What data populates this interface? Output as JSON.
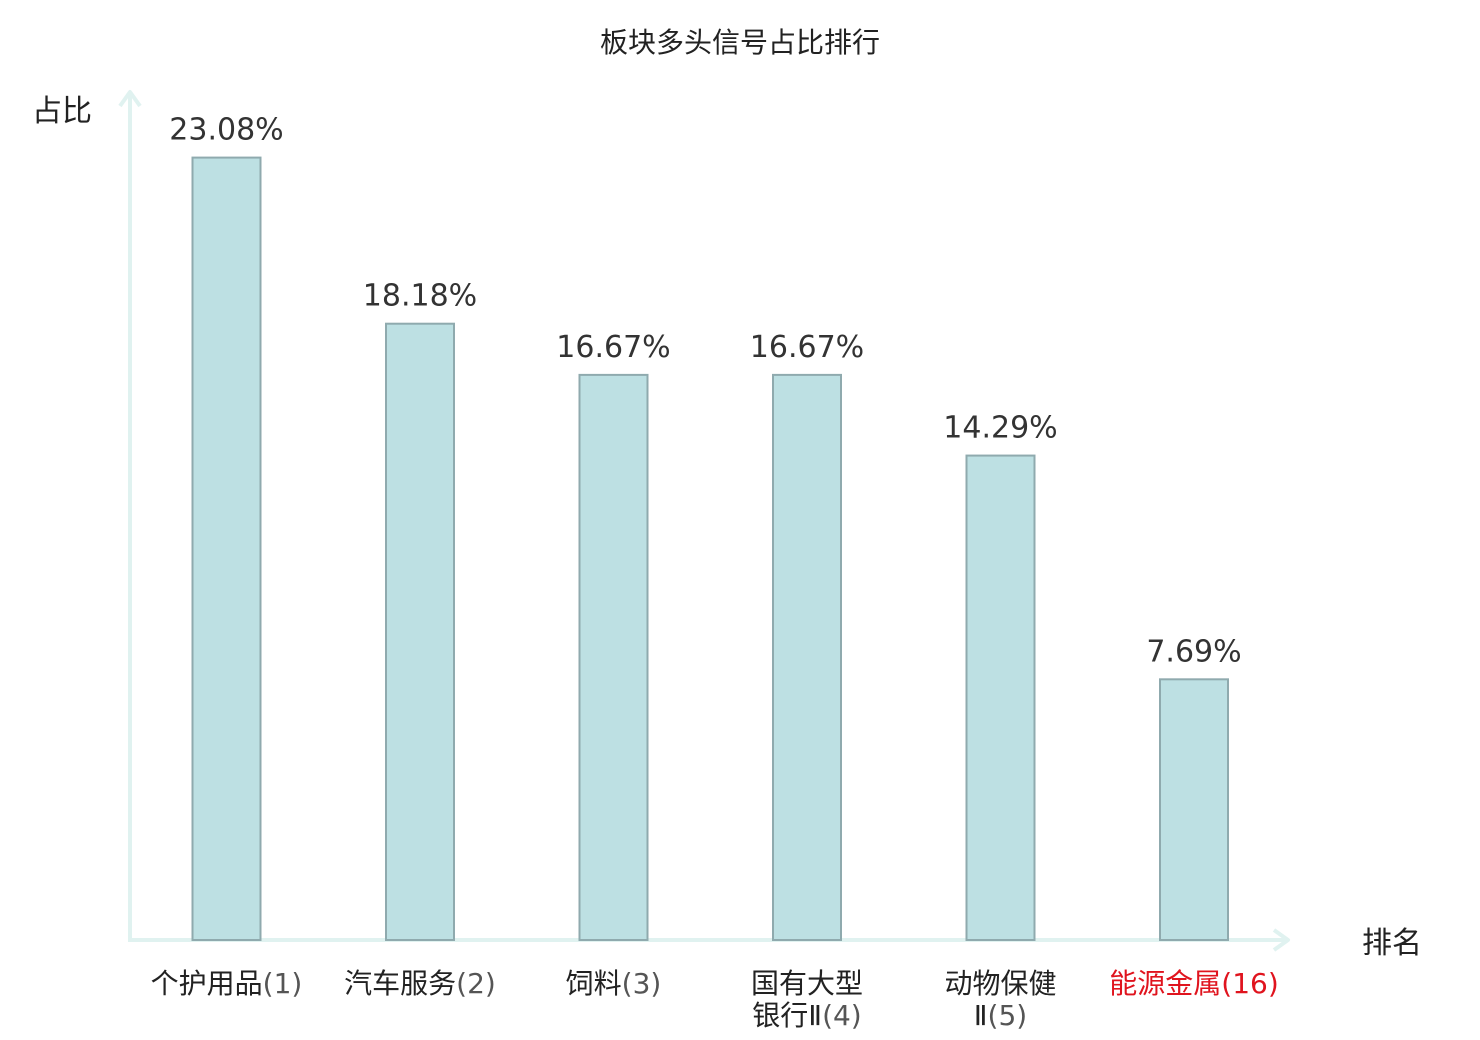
{
  "chart_data": {
    "type": "bar",
    "title": "板块多头信号占比排行",
    "ylabel": "占比",
    "xlabel": "排名",
    "ylim": [
      0,
      25
    ],
    "grid": false,
    "legend": "none",
    "categories": [
      {
        "lines": [
          "个护用品"
        ],
        "rank": "(1)"
      },
      {
        "lines": [
          "汽车服务"
        ],
        "rank": "(2)"
      },
      {
        "lines": [
          "饲料"
        ],
        "rank": "(3)"
      },
      {
        "lines": [
          "国有大型",
          "银行Ⅱ"
        ],
        "rank": "(4)"
      },
      {
        "lines": [
          "动物保健",
          "Ⅱ"
        ],
        "rank": "(5)"
      },
      {
        "lines": [
          "能源金属"
        ],
        "rank": "(16)",
        "highlight": true
      }
    ],
    "values": [
      23.08,
      18.18,
      16.67,
      16.67,
      14.29,
      7.69
    ],
    "value_labels": [
      "23.08%",
      "18.18%",
      "16.67%",
      "16.67%",
      "14.29%",
      "7.69%"
    ],
    "colors": {
      "bar_fill": "#bde0e3",
      "bar_stroke": "#8faaae",
      "axis": "#e0f2f0",
      "highlight_label": "#e0141e"
    }
  }
}
